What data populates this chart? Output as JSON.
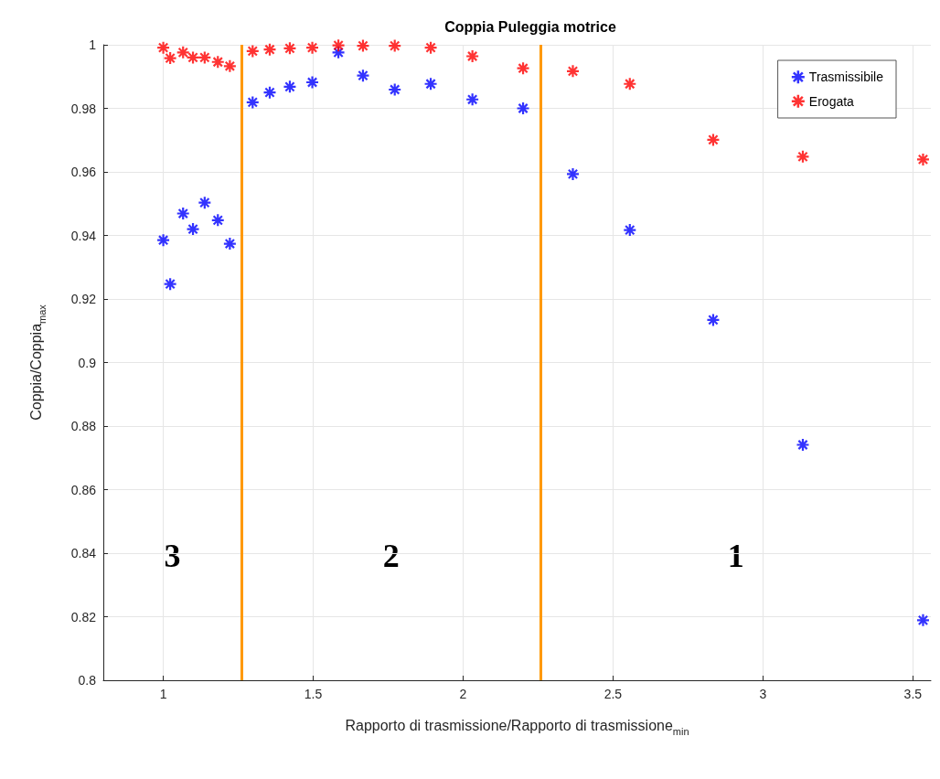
{
  "chart_data": {
    "type": "scatter",
    "title": "Coppia Puleggia motrice",
    "xlabel": "Rapporto di trasmissione/Rapporto di trasmissione$_{min}$",
    "ylabel": "Coppia/Coppia$_{max}$",
    "x": [
      1.0,
      1.023,
      1.066,
      1.099,
      1.138,
      1.182,
      1.222,
      1.298,
      1.355,
      1.422,
      1.497,
      1.584,
      1.666,
      1.772,
      1.892,
      2.031,
      2.2,
      2.366,
      2.556,
      2.834,
      3.133,
      3.534
    ],
    "series": [
      {
        "name": "Trasmissibile",
        "color": "#0000ff",
        "values": [
          0.9385,
          0.9247,
          0.9469,
          0.942,
          0.9503,
          0.9448,
          0.9374,
          0.9819,
          0.985,
          0.9868,
          0.9882,
          0.9976,
          0.9903,
          0.9859,
          0.9877,
          0.9828,
          0.98,
          0.9593,
          0.9417,
          0.9134,
          0.8741,
          0.8189
        ]
      },
      {
        "name": "Erogata",
        "color": "#ff0000",
        "values": [
          0.9991,
          0.9958,
          0.9976,
          0.996,
          0.996,
          0.9946,
          0.9933,
          0.998,
          0.9985,
          0.9989,
          0.9991,
          0.9998,
          0.9997,
          0.9997,
          0.9991,
          0.9964,
          0.9926,
          0.9917,
          0.9877,
          0.9701,
          0.9648,
          0.9639
        ]
      }
    ],
    "ref_lines": [
      {
        "axis": "x",
        "value": 1.26,
        "color": "#ff9900"
      },
      {
        "axis": "x",
        "value": 2.26,
        "color": "#ff9900"
      }
    ],
    "annotations": [
      "3",
      "2",
      "1"
    ],
    "xlim": [
      0.8,
      3.56
    ],
    "xticks": [
      1,
      1.5,
      2,
      2.5,
      3,
      3.5
    ],
    "ylim": [
      0.8,
      1
    ],
    "yticks": [
      0.8,
      0.82,
      0.84,
      0.86,
      0.88,
      0.9,
      0.92,
      0.94,
      0.96,
      0.98,
      1
    ],
    "grid": true,
    "legend": "top right",
    "marker": "cross"
  }
}
